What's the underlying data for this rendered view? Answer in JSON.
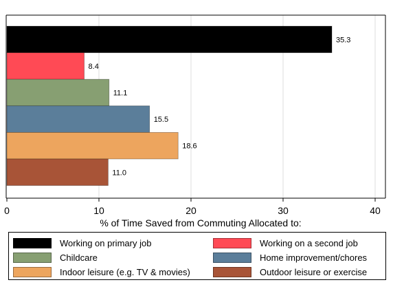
{
  "chart_data": {
    "type": "bar",
    "orientation": "horizontal",
    "xlabel": "% of Time Saved from Commuting Allocated to:",
    "xlim": [
      0,
      41
    ],
    "xticks": [
      0,
      10,
      20,
      30,
      40
    ],
    "grid": true,
    "legend_position": "bottom",
    "bars": [
      {
        "name": "Working on primary job",
        "value": 35.3,
        "label": "35.3",
        "color": "#000000"
      },
      {
        "name": "Working on a second job",
        "value": 8.4,
        "label": "8.4",
        "color": "#ff4a55"
      },
      {
        "name": "Childcare",
        "value": 11.1,
        "label": "11.1",
        "color": "#879f72"
      },
      {
        "name": "Home improvement/chores",
        "value": 15.5,
        "label": "15.5",
        "color": "#5b7e9a"
      },
      {
        "name": "Indoor leisure (e.g. TV & movies)",
        "value": 18.6,
        "label": "18.6",
        "color": "#eda55e"
      },
      {
        "name": "Outdoor leisure or exercise",
        "value": 11.0,
        "label": "11.0",
        "color": "#a85437"
      }
    ],
    "legend": [
      {
        "label": "Working on primary job",
        "color": "#000000"
      },
      {
        "label": "Working on a second job",
        "color": "#ff4a55"
      },
      {
        "label": "Childcare",
        "color": "#879f72"
      },
      {
        "label": "Home improvement/chores",
        "color": "#5b7e9a"
      },
      {
        "label": "Indoor leisure (e.g. TV & movies)",
        "color": "#eda55e"
      },
      {
        "label": "Outdoor leisure or exercise",
        "color": "#a85437"
      }
    ]
  }
}
